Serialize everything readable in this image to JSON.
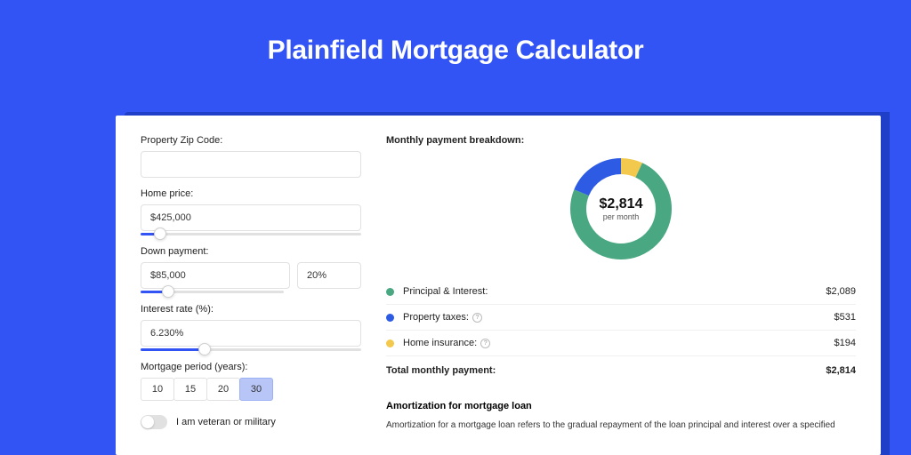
{
  "title": "Plainfield Mortgage Calculator",
  "colors": {
    "page_bg": "#3354f4",
    "shadow": "#1f3fc8",
    "card_bg": "#ffffff",
    "accent": "#3354f4",
    "period_active_bg": "#b8c5f7"
  },
  "form": {
    "zip": {
      "label": "Property Zip Code:",
      "value": ""
    },
    "home_price": {
      "label": "Home price:",
      "value": "$425,000",
      "slider_pct": 9
    },
    "down_payment": {
      "label": "Down payment:",
      "amount": "$85,000",
      "pct": "20%",
      "slider_pct": 19
    },
    "interest_rate": {
      "label": "Interest rate (%):",
      "value": "6.230%",
      "slider_pct": 29
    },
    "mortgage_period": {
      "label": "Mortgage period (years):",
      "options": [
        "10",
        "15",
        "20",
        "30"
      ],
      "active_index": 3
    },
    "veteran": {
      "label": "I am veteran or military",
      "checked": false
    }
  },
  "breakdown": {
    "title": "Monthly payment breakdown:",
    "donut": {
      "center_value": "$2,814",
      "center_sub": "per month",
      "segments": [
        {
          "name": "principal_interest",
          "pct": 74.2,
          "color": "#49a882"
        },
        {
          "name": "property_taxes",
          "pct": 18.9,
          "color": "#2d5be3"
        },
        {
          "name": "home_insurance",
          "pct": 6.9,
          "color": "#f2c94c"
        }
      ],
      "stroke_width": 18
    },
    "rows": [
      {
        "dot_color": "#49a882",
        "label": "Principal & Interest:",
        "info": false,
        "amount": "$2,089"
      },
      {
        "dot_color": "#2d5be3",
        "label": "Property taxes:",
        "info": true,
        "amount": "$531"
      },
      {
        "dot_color": "#f2c94c",
        "label": "Home insurance:",
        "info": true,
        "amount": "$194"
      }
    ],
    "total": {
      "label": "Total monthly payment:",
      "amount": "$2,814"
    }
  },
  "amortization": {
    "title": "Amortization for mortgage loan",
    "text": "Amortization for a mortgage loan refers to the gradual repayment of the loan principal and interest over a specified"
  }
}
